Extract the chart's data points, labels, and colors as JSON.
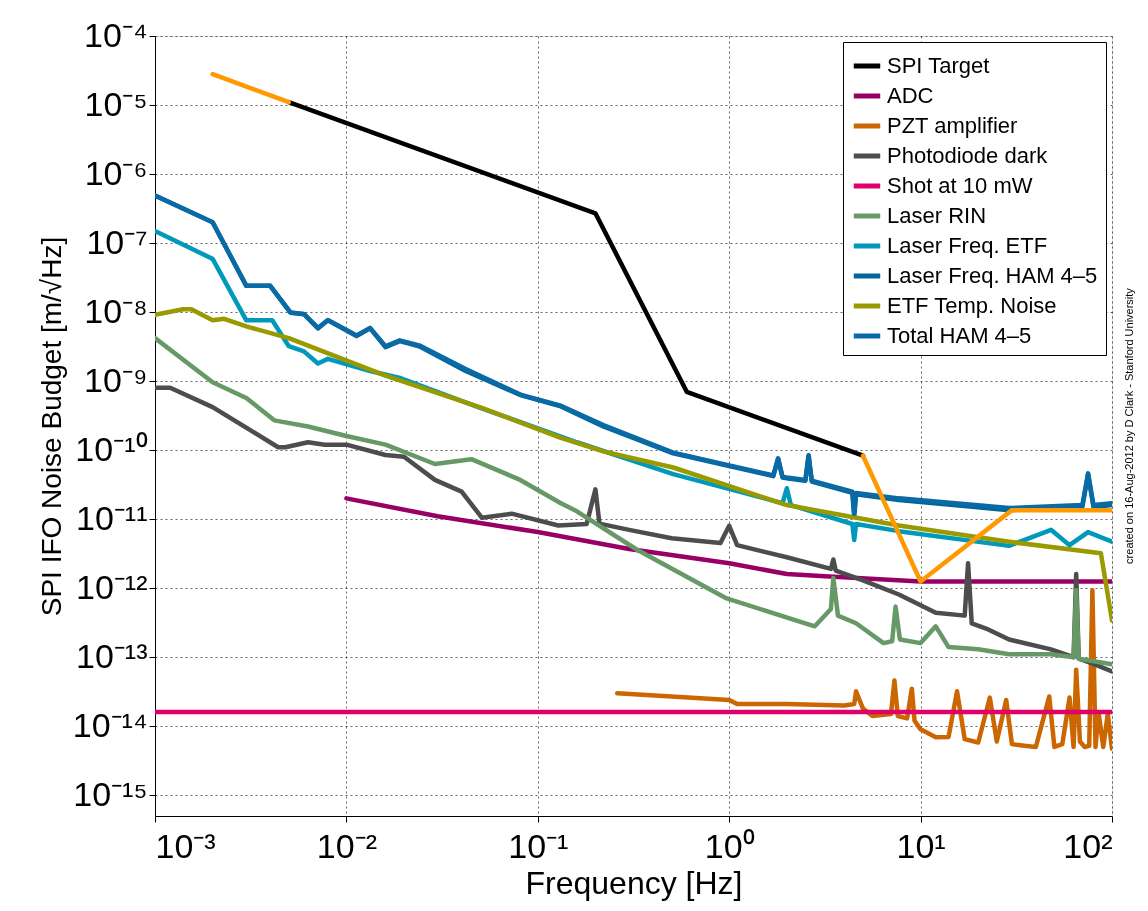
{
  "chart_data": {
    "type": "line",
    "xlabel": "Frequency [Hz]",
    "ylabel": "SPI IFO Noise Budget [m/√Hz]",
    "log": "xy",
    "xlim": [
      0.001,
      100
    ],
    "ylim": [
      5e-16,
      0.0001
    ],
    "xticks": [
      {
        "value": 0.001,
        "label": "10⁻³"
      },
      {
        "value": 0.01,
        "label": "10⁻²"
      },
      {
        "value": 0.1,
        "label": "10⁻¹"
      },
      {
        "value": 1,
        "label": "10⁰"
      },
      {
        "value": 10,
        "label": "10¹"
      },
      {
        "value": 100,
        "label": "10²"
      }
    ],
    "yticks": [
      {
        "value": 1e-15,
        "label": "10⁻¹⁵"
      },
      {
        "value": 1e-14,
        "label": "10⁻¹⁴"
      },
      {
        "value": 1e-13,
        "label": "10⁻¹³"
      },
      {
        "value": 1e-12,
        "label": "10⁻¹²"
      },
      {
        "value": 1e-11,
        "label": "10⁻¹¹"
      },
      {
        "value": 1e-10,
        "label": "10⁻¹⁰"
      },
      {
        "value": 1e-09,
        "label": "10⁻⁹"
      },
      {
        "value": 1e-08,
        "label": "10⁻⁸"
      },
      {
        "value": 1e-07,
        "label": "10⁻⁷"
      },
      {
        "value": 1e-06,
        "label": "10⁻⁶"
      },
      {
        "value": 1e-05,
        "label": "10⁻⁵"
      },
      {
        "value": 0.0001,
        "label": "10⁻⁴"
      }
    ],
    "grid": true,
    "legend": "top right",
    "line_style": "solid",
    "annotations": [
      "created on 16-Aug-2012 by D Clark - Stanford University"
    ],
    "series": [
      {
        "name": "SPI Target",
        "color": "#000000",
        "x": [
          0.005,
          0.2,
          0.6,
          5
        ],
        "values": [
          1.1e-05,
          2.7e-07,
          7e-10,
          8.3e-11
        ]
      },
      {
        "name": "ADC",
        "color": "#990066",
        "x": [
          0.01,
          0.03,
          0.1,
          0.3,
          1,
          2,
          3,
          10,
          100
        ],
        "values": [
          2e-11,
          1.1e-11,
          6.5e-12,
          3.7e-12,
          2.3e-12,
          1.6e-12,
          1.5e-12,
          1.25e-12,
          1.25e-12
        ]
      },
      {
        "name": "PZT amplifier",
        "color": "#cc6600",
        "x": [
          0.26,
          0.5,
          1,
          1.1,
          2,
          4,
          4.5,
          4.6,
          5,
          5.6,
          7,
          7.3,
          7.6,
          8.5,
          9,
          9.3,
          10,
          12,
          14,
          15.5,
          17,
          20,
          23,
          25,
          28,
          30,
          35,
          40,
          47,
          50,
          55,
          60,
          63,
          65,
          68,
          72,
          76,
          79,
          82,
          85,
          90,
          95,
          100
        ],
        "values": [
          3e-14,
          2.7e-14,
          2.4e-14,
          2.1e-14,
          2.1e-14,
          2e-14,
          2.1e-14,
          3.2e-14,
          1.8e-14,
          1.4e-14,
          1.5e-14,
          4.6e-14,
          1.4e-14,
          1.3e-14,
          3.5e-14,
          1.2e-14,
          9e-15,
          6.9e-15,
          7e-15,
          3.2e-14,
          6.5e-15,
          5.8e-15,
          2.6e-14,
          6e-15,
          2.4e-14,
          5.5e-15,
          5.2e-15,
          5e-15,
          2.7e-14,
          5e-15,
          5.5e-15,
          2.6e-14,
          5e-15,
          6.6e-14,
          6e-15,
          5e-15,
          5.2e-15,
          9.3e-13,
          5e-15,
          1.6e-14,
          5e-15,
          1.5e-14,
          4.7e-15
        ]
      },
      {
        "name": "Photodiode dark",
        "color": "#4d4d4d",
        "x": [
          0.001,
          0.0012,
          0.002,
          0.0044,
          0.0048,
          0.0063,
          0.0077,
          0.01,
          0.016,
          0.02,
          0.029,
          0.04,
          0.051,
          0.073,
          0.128,
          0.18,
          0.2,
          0.21,
          0.3,
          0.5,
          0.9,
          1,
          1.1,
          2,
          3.4,
          3.5,
          3.6,
          5,
          7.7,
          12,
          17,
          17.7,
          18.5,
          22,
          29,
          48,
          63,
          65,
          67,
          80,
          100
        ],
        "values": [
          8e-10,
          8e-10,
          4.2e-10,
          1.1e-10,
          1.1e-10,
          1.3e-10,
          1.2e-10,
          1.2e-10,
          8.5e-11,
          8e-11,
          3.7e-11,
          2.5e-11,
          1.05e-11,
          1.2e-11,
          8.1e-12,
          8.5e-12,
          2.7e-11,
          8.6e-12,
          7e-12,
          5.3e-12,
          4.5e-12,
          8e-12,
          4.2e-12,
          2.8e-12,
          1.9e-12,
          2.6e-12,
          1.8e-12,
          1.3e-12,
          8.1e-13,
          4.4e-13,
          4e-13,
          2.3e-12,
          3.1e-13,
          2.6e-13,
          1.8e-13,
          1.3e-13,
          1e-13,
          1.6e-12,
          9.5e-14,
          8e-14,
          6.2e-14
        ]
      },
      {
        "name": "Shot at 10 mW",
        "color": "#e0006a",
        "x": [
          0.001,
          100
        ],
        "values": [
          1.6e-14,
          1.6e-14
        ]
      },
      {
        "name": "Laser RIN",
        "color": "#669966",
        "x": [
          0.001,
          0.002,
          0.003,
          0.0042,
          0.0063,
          0.01,
          0.016,
          0.029,
          0.045,
          0.081,
          0.132,
          0.16,
          0.33,
          0.97,
          2.8,
          3.4,
          3.5,
          3.7,
          4.6,
          6.4,
          7.1,
          7.4,
          7.8,
          10,
          12,
          14,
          20,
          29,
          48,
          63,
          65,
          67,
          100
        ],
        "values": [
          4.2e-09,
          9.6e-10,
          5.7e-10,
          2.7e-10,
          2.2e-10,
          1.6e-10,
          1.2e-10,
          6.3e-11,
          7.4e-11,
          3.7e-11,
          1.7e-11,
          1.3e-11,
          3.6e-12,
          7.1e-13,
          2.8e-13,
          5e-13,
          1.4e-12,
          4e-13,
          3.1e-13,
          1.6e-13,
          1.7e-13,
          5.4e-13,
          1.8e-13,
          1.6e-13,
          2.8e-13,
          1.4e-13,
          1.3e-13,
          1.1e-13,
          1.1e-13,
          1e-13,
          9.3e-13,
          9.5e-14,
          7.9e-14
        ]
      },
      {
        "name": "Laser Freq. ETF",
        "color": "#0099bb",
        "x": [
          0.001,
          0.002,
          0.003,
          0.0041,
          0.005,
          0.006,
          0.0071,
          0.008,
          0.0133,
          0.0193,
          0.05,
          0.16,
          0.51,
          1.9,
          2,
          2.1,
          4.4,
          4.5,
          4.6,
          7.7,
          29,
          48,
          60,
          75,
          100
        ],
        "values": [
          1.5e-07,
          5.9e-08,
          7.6e-09,
          7.6e-09,
          3.2e-09,
          2.7e-09,
          1.8e-09,
          2.1e-09,
          1.4e-09,
          1.1e-09,
          4.1e-10,
          1.3e-10,
          4.5e-11,
          1.7e-11,
          2.8e-11,
          1.6e-11,
          8.5e-12,
          5e-12,
          8.5e-12,
          6.7e-12,
          4.1e-12,
          7e-12,
          4.2e-12,
          6.5e-12,
          4.7e-12
        ]
      },
      {
        "name": "Laser Freq. HAM 4–5",
        "color": "#006699",
        "x": [
          0.001,
          0.002,
          0.003,
          0.004,
          0.0051,
          0.006,
          0.0071,
          0.008,
          0.0113,
          0.0133,
          0.016,
          0.019,
          0.024,
          0.042,
          0.082,
          0.132,
          0.22,
          0.51,
          1.7,
          1.8,
          1.9,
          2,
          2.5,
          2.6,
          2.7,
          4.4,
          4.5,
          4.6,
          7.7,
          29,
          70,
          75,
          80,
          100
        ],
        "values": [
          4.9e-07,
          2e-07,
          2.4e-08,
          2.4e-08,
          9.8e-09,
          9.3e-09,
          5.8e-09,
          7.6e-09,
          4.5e-09,
          5.8e-09,
          3.1e-09,
          3.8e-09,
          3.2e-09,
          1.4e-09,
          6.2e-10,
          4.3e-10,
          2.2e-10,
          9e-11,
          4.2e-11,
          7.5e-11,
          4e-11,
          3.9e-11,
          3.6e-11,
          8.3e-11,
          3.5e-11,
          2.4e-11,
          1.1e-11,
          2.3e-11,
          1.9e-11,
          1.35e-11,
          1.5e-11,
          4.5e-11,
          1.5e-11,
          1.6e-11
        ]
      },
      {
        "name": "ETF Temp. Noise",
        "color": "#999900",
        "x": [
          0.001,
          0.0014,
          0.00155,
          0.002,
          0.0023,
          0.003,
          0.005,
          0.016,
          0.051,
          0.132,
          0.22,
          0.51,
          2,
          7.7,
          29,
          87.5,
          100
        ],
        "values": [
          9.1e-09,
          1.1e-08,
          1.1e-08,
          7.6e-09,
          8e-09,
          6.2e-09,
          4.2e-09,
          1.2e-09,
          4.1e-10,
          1.5e-10,
          9.6e-11,
          5.6e-11,
          1.6e-11,
          8.1e-12,
          4.7e-12,
          3.2e-12,
          3.4e-13
        ]
      },
      {
        "name": "Total HAM 4–5",
        "color": "#0a6aa6",
        "x": [
          0.001,
          0.002,
          0.003,
          0.004,
          0.0051,
          0.006,
          0.0071,
          0.008,
          0.0113,
          0.0133,
          0.016,
          0.019,
          0.024,
          0.042,
          0.082,
          0.132,
          0.22,
          0.51,
          1.7,
          1.8,
          1.9,
          2,
          2.5,
          2.6,
          2.7,
          4.4,
          4.5,
          4.6,
          7.7,
          29,
          70,
          75,
          80,
          100
        ],
        "values": [
          4.9e-07,
          2e-07,
          2.4e-08,
          2.4e-08,
          9.9e-09,
          9.4e-09,
          5.9e-09,
          7.7e-09,
          4.6e-09,
          5.9e-09,
          3.2e-09,
          3.9e-09,
          3.3e-09,
          1.5e-09,
          6.3e-10,
          4.4e-10,
          2.3e-10,
          9.2e-11,
          4.3e-11,
          7.6e-11,
          4.1e-11,
          4e-11,
          3.7e-11,
          8.4e-11,
          3.6e-11,
          2.5e-11,
          1.2e-11,
          2.4e-11,
          2e-11,
          1.45e-11,
          1.6e-11,
          4.6e-11,
          1.6e-11,
          1.7e-11
        ]
      },
      {
        "color": "#ff9900",
        "x": [
          0.002,
          0.005
        ],
        "values": [
          2.8e-05,
          1.1e-05
        ]
      },
      {
        "color": "#ff9900",
        "x": [
          5,
          10,
          30,
          100
        ],
        "values": [
          8.3e-11,
          1.25e-12,
          1.35e-11,
          1.35e-11
        ]
      }
    ]
  }
}
